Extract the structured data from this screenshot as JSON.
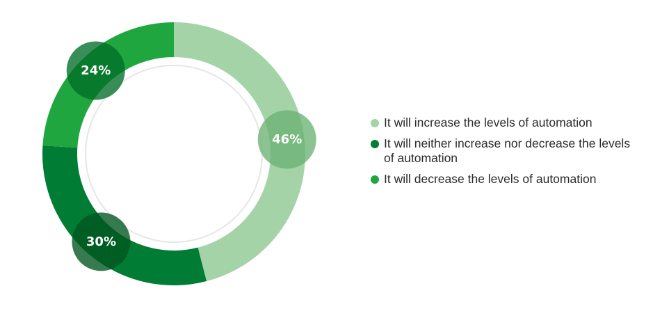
{
  "chart_data": {
    "type": "pie",
    "categories": [
      "It will increase the levels of automation",
      "It will neither increase nor decrease the levels of automation",
      "It will decrease the levels of automation"
    ],
    "values": [
      46,
      30,
      24
    ],
    "value_labels": [
      "46%",
      "30%",
      "24%"
    ],
    "colors": [
      "#a4d3a8",
      "#007c35",
      "#20a63f"
    ],
    "bubble_colors": [
      "#6bb274",
      "#00541f",
      "#006e26"
    ],
    "donut": true,
    "start_angle_deg": 0,
    "direction": "clockwise",
    "legend": {
      "position": "right",
      "items": [
        {
          "label": "It will increase the levels of automation",
          "color": "#a4d3a8"
        },
        {
          "label": "It will neither increase nor decrease the levels of automation",
          "color": "#007c35"
        },
        {
          "label": "It will decrease the levels of automation",
          "color": "#20a63f"
        }
      ]
    }
  }
}
